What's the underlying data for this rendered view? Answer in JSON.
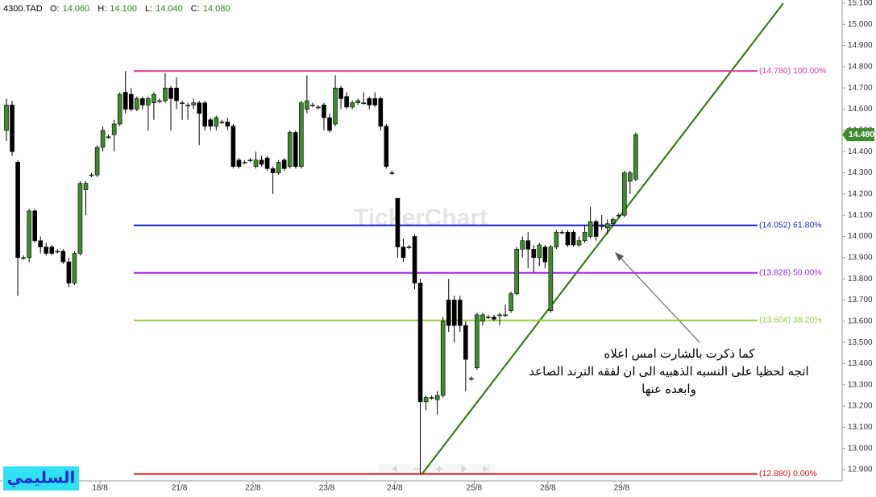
{
  "chart_data": {
    "type": "candlestick",
    "symbol": "4300.TAD",
    "header": [
      {
        "label": "O:",
        "value": "14.060"
      },
      {
        "label": "H:",
        "value": "14.100"
      },
      {
        "label": "L:",
        "value": "14.040"
      },
      {
        "label": "C:",
        "value": "14.080"
      }
    ],
    "up_color": "#3f8a2e",
    "down_color": "#000000",
    "ylim": [
      12.847,
      15.115
    ],
    "yticks": [
      {
        "value": 12.9,
        "label": "12.900"
      },
      {
        "value": 13.0,
        "label": "13.000"
      },
      {
        "value": 13.1,
        "label": "13.100"
      },
      {
        "value": 13.2,
        "label": "13.200"
      },
      {
        "value": 13.3,
        "label": "13.300"
      },
      {
        "value": 13.4,
        "label": "13.400"
      },
      {
        "value": 13.5,
        "label": "13.500"
      },
      {
        "value": 13.6,
        "label": "13.600"
      },
      {
        "value": 13.7,
        "label": "13.700"
      },
      {
        "value": 13.8,
        "label": "13.800"
      },
      {
        "value": 13.9,
        "label": "13.900"
      },
      {
        "value": 14.0,
        "label": "14.000"
      },
      {
        "value": 14.1,
        "label": "14.100"
      },
      {
        "value": 14.2,
        "label": "14.200"
      },
      {
        "value": 14.3,
        "label": "14.300"
      },
      {
        "value": 14.4,
        "label": "14.400"
      },
      {
        "value": 14.5,
        "label": "14.500"
      },
      {
        "value": 14.6,
        "label": "14.600"
      },
      {
        "value": 14.7,
        "label": "14.700"
      },
      {
        "value": 14.8,
        "label": "14.800"
      },
      {
        "value": 14.9,
        "label": "14.900"
      },
      {
        "value": 15.0,
        "label": "15.000"
      },
      {
        "value": 15.1,
        "label": "15.100"
      }
    ],
    "last_price": {
      "value": 14.48,
      "label": "14.480"
    },
    "fib_levels": [
      {
        "value": 14.78,
        "label": "(14.780) 100.00%",
        "color": "#e0409a"
      },
      {
        "value": 14.052,
        "label": "(14.052) 61.80%",
        "color": "#1c1ccc"
      },
      {
        "value": 13.828,
        "label": "(13.828) 50.00%",
        "color": "#a224e0"
      },
      {
        "value": 13.604,
        "label": "(13.604) 38.20%",
        "color": "#9acd32"
      },
      {
        "value": 12.88,
        "label": "(12.880) 0.00%",
        "color": "#e01414"
      }
    ],
    "categories": [
      null,
      null,
      null,
      null,
      null,
      null,
      null,
      null,
      null,
      null,
      null,
      null,
      null,
      null,
      null,
      null,
      null,
      "18/8",
      null,
      null,
      null,
      null,
      null,
      null,
      null,
      null,
      null,
      null,
      null,
      null,
      null,
      "21/8",
      null,
      null,
      null,
      null,
      null,
      null,
      null,
      null,
      null,
      null,
      null,
      null,
      "22/8",
      null,
      null,
      null,
      null,
      null,
      null,
      null,
      null,
      null,
      null,
      null,
      null,
      "23/8",
      null,
      null,
      null,
      null,
      null,
      null,
      null,
      null,
      null,
      null,
      null,
      "24/8",
      null,
      null,
      null,
      null,
      null,
      null,
      null,
      null,
      null,
      null,
      null,
      null,
      null,
      "25/8",
      null,
      null,
      null,
      null,
      null,
      null,
      null,
      null,
      null,
      null,
      null,
      null,
      "28/8",
      null,
      null,
      null,
      null,
      null,
      null,
      null,
      null,
      null,
      null,
      null,
      null,
      "29/8",
      null,
      null
    ],
    "ohlc": [
      [
        14.5,
        14.65,
        14.45,
        14.62
      ],
      [
        14.62,
        14.64,
        14.38,
        14.4
      ],
      [
        14.35,
        14.36,
        13.72,
        13.9
      ],
      [
        13.9,
        13.91,
        13.89,
        13.9
      ],
      [
        13.9,
        14.13,
        13.88,
        14.12
      ],
      [
        14.12,
        14.13,
        13.97,
        13.98
      ],
      [
        13.98,
        14.0,
        13.92,
        13.95
      ],
      [
        13.95,
        13.97,
        13.91,
        13.92
      ],
      [
        13.95,
        13.96,
        13.91,
        13.92
      ],
      [
        13.93,
        13.94,
        13.92,
        13.93
      ],
      [
        13.93,
        13.94,
        13.87,
        13.88
      ],
      [
        13.88,
        13.9,
        13.76,
        13.78
      ],
      [
        13.78,
        13.93,
        13.77,
        13.92
      ],
      [
        13.92,
        14.26,
        13.91,
        14.25
      ],
      [
        14.22,
        14.26,
        14.1,
        14.25
      ],
      [
        14.29,
        14.3,
        14.28,
        14.29
      ],
      [
        14.29,
        14.43,
        14.28,
        14.42
      ],
      [
        14.42,
        14.52,
        14.4,
        14.5
      ],
      [
        14.47,
        14.48,
        14.46,
        14.47
      ],
      [
        14.48,
        14.55,
        14.4,
        14.53
      ],
      [
        14.53,
        14.68,
        14.52,
        14.67
      ],
      [
        14.68,
        14.78,
        14.58,
        14.6
      ],
      [
        14.67,
        14.7,
        14.59,
        14.6
      ],
      [
        14.6,
        14.66,
        14.59,
        14.65
      ],
      [
        14.65,
        14.66,
        14.6,
        14.62
      ],
      [
        14.62,
        14.66,
        14.5,
        14.65
      ],
      [
        14.63,
        14.68,
        14.55,
        14.67
      ],
      [
        14.64,
        14.65,
        14.63,
        14.64
      ],
      [
        14.64,
        14.77,
        14.63,
        14.7
      ],
      [
        14.7,
        14.71,
        14.5,
        14.65
      ],
      [
        14.7,
        14.75,
        14.6,
        14.64
      ],
      [
        14.63,
        14.64,
        14.55,
        14.63
      ],
      [
        14.62,
        14.63,
        14.55,
        14.62
      ],
      [
        14.62,
        14.65,
        14.6,
        14.63
      ],
      [
        14.63,
        14.64,
        14.43,
        14.58
      ],
      [
        14.63,
        14.64,
        14.5,
        14.52
      ],
      [
        14.55,
        14.56,
        14.5,
        14.52
      ],
      [
        14.52,
        14.57,
        14.5,
        14.56
      ],
      [
        14.54,
        14.55,
        14.53,
        14.54
      ],
      [
        14.54,
        14.56,
        14.5,
        14.52
      ],
      [
        14.52,
        14.53,
        14.32,
        14.33
      ],
      [
        14.36,
        14.37,
        14.32,
        14.33
      ],
      [
        14.35,
        14.36,
        14.34,
        14.35
      ],
      [
        14.36,
        14.37,
        14.35,
        14.36
      ],
      [
        14.33,
        14.4,
        14.32,
        14.36
      ],
      [
        14.36,
        14.38,
        14.33,
        14.34
      ],
      [
        14.37,
        14.38,
        14.31,
        14.32
      ],
      [
        14.32,
        14.33,
        14.2,
        14.3
      ],
      [
        14.3,
        14.36,
        14.29,
        14.35
      ],
      [
        14.36,
        14.37,
        14.31,
        14.32
      ],
      [
        14.33,
        14.5,
        14.32,
        14.49
      ],
      [
        14.49,
        14.5,
        14.32,
        14.33
      ],
      [
        14.33,
        14.64,
        14.32,
        14.63
      ],
      [
        14.6,
        14.76,
        14.58,
        14.64
      ],
      [
        14.62,
        14.63,
        14.61,
        14.62
      ],
      [
        14.61,
        14.62,
        14.6,
        14.61
      ],
      [
        14.62,
        14.63,
        14.5,
        14.56
      ],
      [
        14.56,
        14.58,
        14.49,
        14.5
      ],
      [
        14.53,
        14.76,
        14.52,
        14.7
      ],
      [
        14.7,
        14.71,
        14.6,
        14.65
      ],
      [
        14.66,
        14.68,
        14.6,
        14.61
      ],
      [
        14.61,
        14.64,
        14.6,
        14.63
      ],
      [
        14.63,
        14.65,
        14.62,
        14.64
      ],
      [
        14.63,
        14.68,
        14.62,
        14.63
      ],
      [
        14.65,
        14.66,
        14.6,
        14.62
      ],
      [
        14.65,
        14.68,
        14.61,
        14.62
      ],
      [
        14.65,
        14.66,
        14.5,
        14.52
      ],
      [
        14.52,
        14.53,
        14.32,
        14.33
      ],
      [
        14.3,
        14.31,
        14.29,
        14.3
      ],
      [
        14.18,
        14.18,
        13.9,
        13.95
      ],
      [
        13.95,
        13.99,
        13.88,
        13.9
      ],
      [
        13.95,
        13.96,
        13.94,
        13.95
      ],
      [
        14.0,
        14.01,
        13.75,
        13.78
      ],
      [
        13.78,
        13.8,
        12.88,
        13.22
      ],
      [
        13.22,
        13.25,
        13.18,
        13.24
      ],
      [
        13.24,
        13.25,
        13.23,
        13.24
      ],
      [
        13.23,
        13.27,
        13.16,
        13.25
      ],
      [
        13.25,
        13.62,
        13.24,
        13.6
      ],
      [
        13.7,
        13.8,
        13.55,
        13.58
      ],
      [
        13.7,
        13.72,
        13.5,
        13.58
      ],
      [
        13.7,
        13.72,
        13.55,
        13.58
      ],
      [
        13.58,
        13.6,
        13.27,
        13.42
      ],
      [
        13.33,
        13.34,
        13.32,
        13.33
      ],
      [
        13.38,
        13.64,
        13.37,
        13.63
      ],
      [
        13.6,
        13.64,
        13.58,
        13.63
      ],
      [
        13.62,
        13.63,
        13.61,
        13.62
      ],
      [
        13.62,
        13.63,
        13.6,
        13.61
      ],
      [
        13.63,
        13.64,
        13.58,
        13.63
      ],
      [
        13.63,
        13.68,
        13.62,
        13.63
      ],
      [
        13.65,
        13.74,
        13.64,
        13.73
      ],
      [
        13.73,
        13.95,
        13.72,
        13.94
      ],
      [
        13.94,
        14.0,
        13.9,
        13.98
      ],
      [
        13.98,
        14.02,
        13.85,
        13.94
      ],
      [
        13.94,
        13.96,
        13.83,
        13.9
      ],
      [
        13.9,
        13.97,
        13.86,
        13.96
      ],
      [
        13.95,
        13.96,
        13.85,
        13.88
      ],
      [
        13.65,
        13.96,
        13.64,
        13.95
      ],
      [
        13.95,
        14.03,
        13.94,
        14.02
      ],
      [
        14.02,
        14.03,
        14.01,
        14.02
      ],
      [
        14.02,
        14.03,
        13.95,
        13.96
      ],
      [
        14.02,
        14.03,
        13.95,
        13.96
      ],
      [
        13.96,
        14.0,
        13.95,
        13.98
      ],
      [
        13.98,
        14.05,
        13.97,
        14.02
      ],
      [
        14.0,
        14.14,
        13.99,
        14.07
      ],
      [
        14.07,
        14.08,
        13.98,
        14.0
      ],
      [
        14.05,
        14.1,
        14.03,
        14.05
      ],
      [
        14.04,
        14.08,
        14.01,
        14.06
      ],
      [
        14.06,
        14.09,
        14.05,
        14.08
      ],
      [
        14.1,
        14.11,
        14.09,
        14.1
      ],
      [
        14.1,
        14.31,
        14.09,
        14.3
      ],
      [
        14.26,
        14.31,
        14.2,
        14.3
      ],
      [
        14.27,
        14.49,
        14.26,
        14.48
      ]
    ],
    "annotation": [
      "كما ذكرت بالشارت امس اعلاه",
      "اتجه لحظيا على النسبه الذهبيه الى ان لفقه الترند الصاعد",
      "وابعده عنها"
    ],
    "watermark": "TickerChart",
    "logo": "السليمي"
  }
}
